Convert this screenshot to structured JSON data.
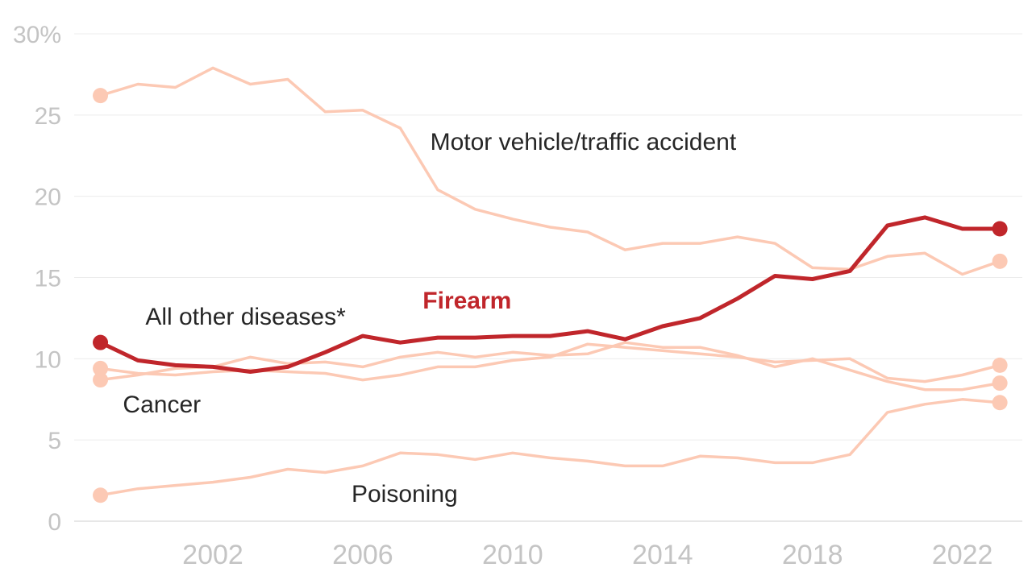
{
  "chart_data": {
    "type": "line",
    "title": "",
    "xlabel": "",
    "ylabel": "",
    "x": [
      1999,
      2000,
      2001,
      2002,
      2003,
      2004,
      2005,
      2006,
      2007,
      2008,
      2009,
      2010,
      2011,
      2012,
      2013,
      2014,
      2015,
      2016,
      2017,
      2018,
      2019,
      2020,
      2021,
      2022,
      2023
    ],
    "xticks": [
      2002,
      2006,
      2010,
      2014,
      2018,
      2022
    ],
    "xtick_labels": [
      "2002",
      "2006",
      "2010",
      "2014",
      "2018",
      "2022"
    ],
    "xlim": [
      1998.3,
      2023.6
    ],
    "ylim": [
      0,
      30
    ],
    "yticks": [
      0,
      5,
      10,
      15,
      20,
      25,
      30
    ],
    "ytick_labels": [
      "0",
      "5",
      "10",
      "15",
      "20",
      "25",
      "30%"
    ],
    "grid": true,
    "series": [
      {
        "name": "Motor vehicle/traffic accident",
        "color": "#fcc9b4",
        "highlight": false,
        "values": [
          26.2,
          26.9,
          26.7,
          27.9,
          26.9,
          27.2,
          25.2,
          25.3,
          24.2,
          20.4,
          19.2,
          18.6,
          18.1,
          17.8,
          16.7,
          17.1,
          17.1,
          17.5,
          17.1,
          15.6,
          15.5,
          16.3,
          16.5,
          15.2,
          16.0
        ]
      },
      {
        "name": "Firearm",
        "color": "#c0262b",
        "highlight": true,
        "values": [
          11.0,
          9.9,
          9.6,
          9.5,
          9.2,
          9.5,
          10.4,
          11.4,
          11.0,
          11.3,
          11.3,
          11.4,
          11.4,
          11.7,
          11.2,
          12.0,
          12.5,
          13.7,
          15.1,
          14.9,
          15.4,
          18.2,
          18.7,
          18.0,
          18.0
        ]
      },
      {
        "name": "All other diseases*",
        "color": "#fcc9b4",
        "highlight": false,
        "values": [
          9.4,
          9.1,
          9.0,
          9.2,
          9.3,
          9.2,
          9.1,
          8.7,
          9.0,
          9.5,
          9.5,
          9.9,
          10.1,
          10.9,
          10.7,
          10.5,
          10.3,
          10.1,
          9.8,
          9.9,
          10.0,
          8.8,
          8.6,
          9.0,
          9.6
        ]
      },
      {
        "name": "Cancer",
        "color": "#fcc9b4",
        "highlight": false,
        "values": [
          8.7,
          9.0,
          9.4,
          9.5,
          10.1,
          9.7,
          9.8,
          9.5,
          10.1,
          10.4,
          10.1,
          10.4,
          10.2,
          10.3,
          11.0,
          10.7,
          10.7,
          10.2,
          9.5,
          10.0,
          9.3,
          8.6,
          8.1,
          8.1,
          8.5
        ]
      },
      {
        "name": "Poisoning",
        "color": "#fcc9b4",
        "highlight": false,
        "values": [
          1.6,
          2.0,
          2.2,
          2.4,
          2.7,
          3.2,
          3.0,
          3.4,
          4.2,
          4.1,
          3.8,
          4.2,
          3.9,
          3.7,
          3.4,
          3.4,
          4.0,
          3.9,
          3.6,
          3.6,
          4.1,
          6.7,
          7.2,
          7.5,
          7.3
        ]
      }
    ],
    "annotations": [
      {
        "series": "Motor vehicle/traffic accident",
        "text": "Motor vehicle/traffic accident",
        "x": 2007.8,
        "y": 22.85
      },
      {
        "series": "Firearm",
        "text": "Firearm",
        "x": 2007.6,
        "y": 13.1
      },
      {
        "series": "All other diseases*",
        "text": "All other diseases*",
        "x": 2000.2,
        "y": 12.1
      },
      {
        "series": "Cancer",
        "text": "Cancer",
        "x": 1999.6,
        "y": 6.7
      },
      {
        "series": "Poisoning",
        "text": "Poisoning",
        "x": 2005.7,
        "y": 1.2
      }
    ]
  }
}
